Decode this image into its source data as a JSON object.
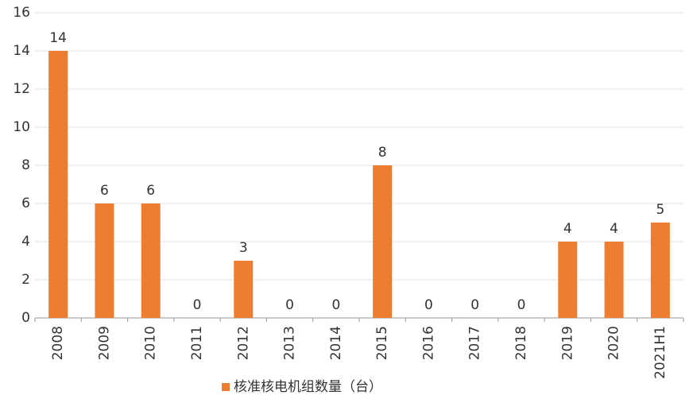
{
  "chart_data": {
    "type": "bar",
    "categories": [
      "2008",
      "2009",
      "2010",
      "2011",
      "2012",
      "2013",
      "2014",
      "2015",
      "2016",
      "2017",
      "2018",
      "2019",
      "2020",
      "2021H1"
    ],
    "series": [
      {
        "name": "核准核电机组数量（台）",
        "color": "#ed7d31",
        "values": [
          14,
          6,
          6,
          0,
          3,
          0,
          0,
          8,
          0,
          0,
          0,
          4,
          4,
          5
        ]
      }
    ],
    "ylim": [
      0,
      16
    ],
    "yticks": [
      0,
      2,
      4,
      6,
      8,
      10,
      12,
      14,
      16
    ],
    "grid": true,
    "legend": "bottom"
  }
}
